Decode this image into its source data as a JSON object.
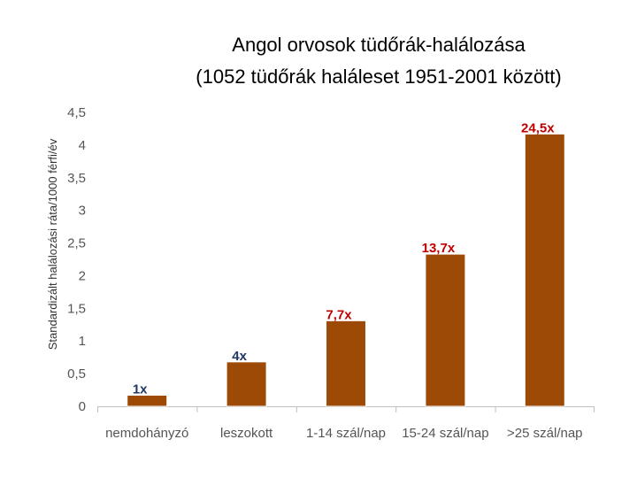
{
  "chart_data": {
    "type": "bar",
    "title": "Angol orvosok tüdőrák-halálozása",
    "subtitle": "(1052 tüdőrák haláleset 1951-2001 között)",
    "ylabel": "Standardizált halálozási ráta/1000 férfi/év",
    "xlabel": "",
    "categories": [
      "nemdohányzó",
      "leszokott",
      "1-14 szál/nap",
      "15-24 szál/nap",
      ">25 szál/nap"
    ],
    "values": [
      0.17,
      0.68,
      1.31,
      2.33,
      4.17
    ],
    "data_labels": [
      "1x",
      "4x",
      "7,7x",
      "13,7x",
      "24,5x"
    ],
    "ylim": [
      0,
      4.5
    ],
    "yticks": [
      "0",
      "0,5",
      "1",
      "1,5",
      "2",
      "2,5",
      "3",
      "3,5",
      "4",
      "4,5"
    ],
    "grid": false,
    "legend": "none",
    "colors": {
      "bar": "#9c4a06",
      "bar_stroke": "#ffffff",
      "label_first": "#1f3864",
      "label_second": "#1f3864",
      "label_rest": "#c00000",
      "axis": "#bfbfbf"
    }
  }
}
